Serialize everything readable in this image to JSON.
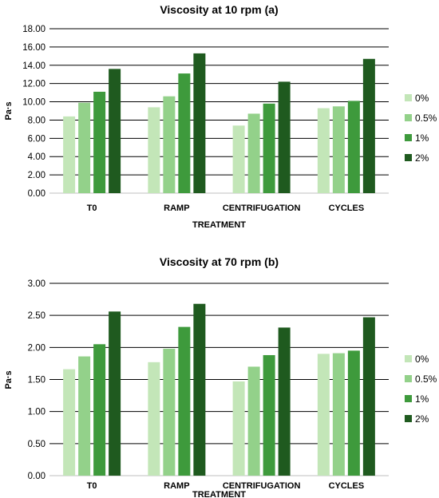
{
  "chart_data": [
    {
      "type": "bar",
      "title": "Viscosity at 10 rpm (a)",
      "xlabel": "TREATMENT",
      "ylabel": "Pa·s",
      "categories": [
        "T0",
        "RAMP",
        "CENTRIFUGATION",
        "CYCLES"
      ],
      "ylim": [
        0,
        18
      ],
      "yticks": [
        "0.00",
        "2.00",
        "4.00",
        "6.00",
        "8.00",
        "10.00",
        "12.00",
        "14.00",
        "16.00",
        "18.00"
      ],
      "grid": true,
      "legend_position": "right",
      "series": [
        {
          "name": "0%",
          "color": "#c3e6b8",
          "values": [
            8.4,
            9.4,
            7.4,
            9.3
          ]
        },
        {
          "name": "0.5%",
          "color": "#93d18a",
          "values": [
            9.9,
            10.6,
            8.7,
            9.5
          ]
        },
        {
          "name": "1%",
          "color": "#3e9a3c",
          "values": [
            11.1,
            13.1,
            9.8,
            10.1
          ]
        },
        {
          "name": "2%",
          "color": "#1f5a1f",
          "values": [
            13.6,
            15.3,
            12.2,
            14.7
          ]
        }
      ]
    },
    {
      "type": "bar",
      "title": "Viscosity at 70 rpm (b)",
      "xlabel": "TREATMENT",
      "ylabel": "Pa·s",
      "categories": [
        "T0",
        "RAMP",
        "CENTRIFUGATION",
        "CYCLES"
      ],
      "ylim": [
        0,
        3
      ],
      "yticks": [
        "0.00",
        "0.50",
        "1.00",
        "1.50",
        "2.00",
        "2.50",
        "3.00"
      ],
      "grid": true,
      "legend_position": "right",
      "series": [
        {
          "name": "0%",
          "color": "#c3e6b8",
          "values": [
            1.66,
            1.77,
            1.47,
            1.9
          ]
        },
        {
          "name": "0.5%",
          "color": "#93d18a",
          "values": [
            1.86,
            1.98,
            1.7,
            1.91
          ]
        },
        {
          "name": "1%",
          "color": "#3e9a3c",
          "values": [
            2.05,
            2.32,
            1.88,
            1.95
          ]
        },
        {
          "name": "2%",
          "color": "#1f5a1f",
          "values": [
            2.56,
            2.68,
            2.31,
            2.47
          ]
        }
      ]
    }
  ]
}
